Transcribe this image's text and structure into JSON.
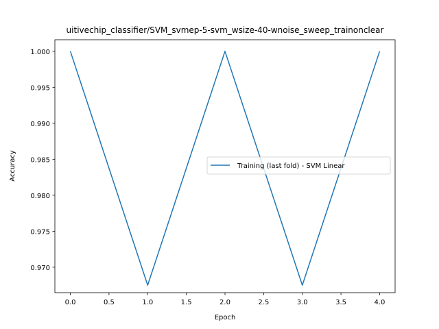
{
  "chart_data": {
    "type": "line",
    "title": "uitivechip_classifier/SVM_svmep-5-svm_wsize-40-wnoise_sweep_trainonclear",
    "xlabel": "Epoch",
    "ylabel": "Accuracy",
    "xlim": [
      -0.2,
      4.2
    ],
    "ylim": [
      0.96646,
      1.0016
    ],
    "x_ticks": [
      0.0,
      0.5,
      1.0,
      1.5,
      2.0,
      2.5,
      3.0,
      3.5,
      4.0
    ],
    "x_tick_labels": [
      "0.0",
      "0.5",
      "1.0",
      "1.5",
      "2.0",
      "2.5",
      "3.0",
      "3.5",
      "4.0"
    ],
    "y_ticks": [
      0.97,
      0.975,
      0.98,
      0.985,
      0.99,
      0.995,
      1.0
    ],
    "y_tick_labels": [
      "0.970",
      "0.975",
      "0.980",
      "0.985",
      "0.990",
      "0.995",
      "1.000"
    ],
    "grid": false,
    "legend_position": "center-right",
    "series": [
      {
        "name": "Training (last fold) - SVM Linear",
        "color": "#1f77b4",
        "x": [
          0,
          1,
          2,
          3,
          4
        ],
        "y": [
          1.0,
          0.9675,
          1.0,
          0.9675,
          1.0
        ]
      }
    ]
  }
}
